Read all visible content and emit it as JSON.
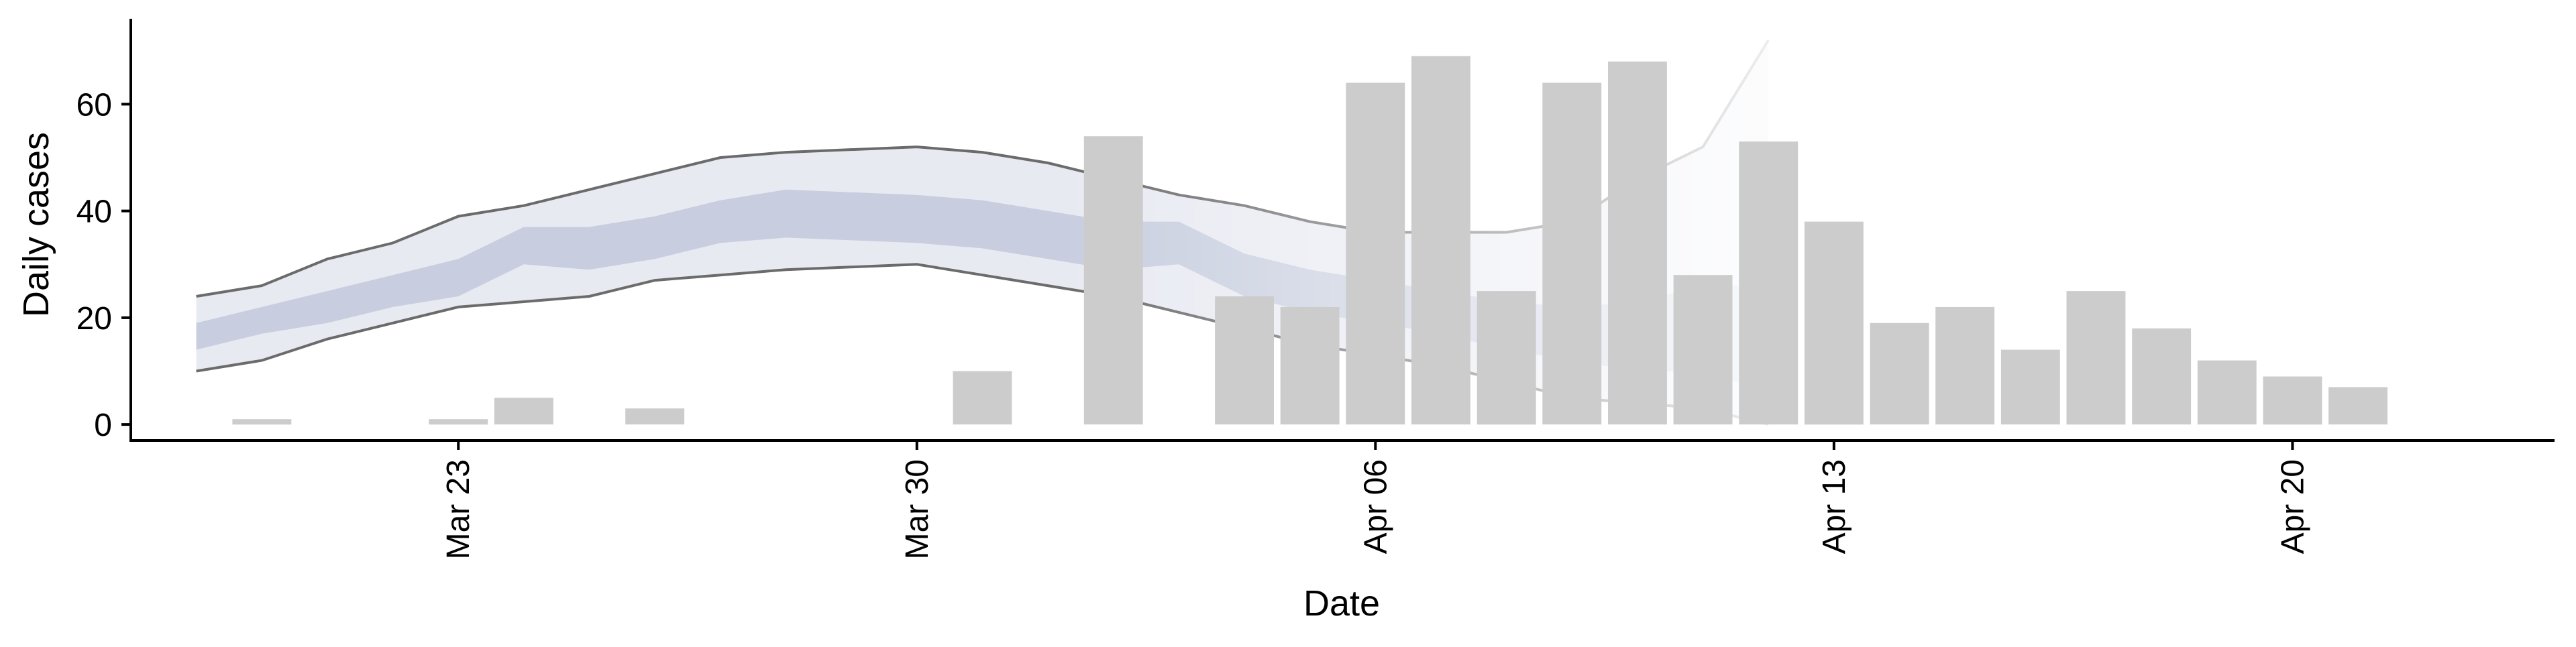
{
  "chart_data": {
    "type": "bar",
    "xlabel": "Date",
    "ylabel": "Daily cases",
    "ylim": [
      -3,
      76
    ],
    "yticks": [
      0,
      20,
      40,
      60
    ],
    "xlim": [
      "2020-03-18",
      "2020-04-24"
    ],
    "xticks": [
      {
        "date": "2020-03-23",
        "label": "Mar 23"
      },
      {
        "date": "2020-03-30",
        "label": "Mar 30"
      },
      {
        "date": "2020-04-06",
        "label": "Apr 06"
      },
      {
        "date": "2020-04-13",
        "label": "Apr 13"
      },
      {
        "date": "2020-04-20",
        "label": "Apr 20"
      }
    ],
    "grid": false,
    "legend": "none",
    "colors": {
      "bars": "#cccccc",
      "band_outer": "#e8eaf2",
      "band_inner": "#c8cedf",
      "bound_line": "#6b6b6b",
      "axis": "#000000"
    },
    "bars": [
      {
        "date": "2020-03-20",
        "value": 1
      },
      {
        "date": "2020-03-23",
        "value": 1
      },
      {
        "date": "2020-03-24",
        "value": 5
      },
      {
        "date": "2020-03-26",
        "value": 3
      },
      {
        "date": "2020-03-31",
        "value": 10
      },
      {
        "date": "2020-04-02",
        "value": 54
      },
      {
        "date": "2020-04-04",
        "value": 24
      },
      {
        "date": "2020-04-05",
        "value": 22
      },
      {
        "date": "2020-04-06",
        "value": 64
      },
      {
        "date": "2020-04-07",
        "value": 69
      },
      {
        "date": "2020-04-08",
        "value": 25
      },
      {
        "date": "2020-04-09",
        "value": 64
      },
      {
        "date": "2020-04-10",
        "value": 68
      },
      {
        "date": "2020-04-11",
        "value": 28
      },
      {
        "date": "2020-04-12",
        "value": 53
      },
      {
        "date": "2020-04-13",
        "value": 38
      },
      {
        "date": "2020-04-14",
        "value": 19
      },
      {
        "date": "2020-04-15",
        "value": 22
      },
      {
        "date": "2020-04-16",
        "value": 14
      },
      {
        "date": "2020-04-17",
        "value": 25
      },
      {
        "date": "2020-04-18",
        "value": 18
      },
      {
        "date": "2020-04-19",
        "value": 12
      },
      {
        "date": "2020-04-20",
        "value": 9
      },
      {
        "date": "2020-04-21",
        "value": 7
      }
    ],
    "band": [
      {
        "date": "2020-03-19",
        "lower": 10,
        "inner_lower": 14,
        "inner_upper": 19,
        "upper": 24
      },
      {
        "date": "2020-03-20",
        "lower": 12,
        "inner_lower": 17,
        "inner_upper": 22,
        "upper": 26
      },
      {
        "date": "2020-03-21",
        "lower": 16,
        "inner_lower": 19,
        "inner_upper": 25,
        "upper": 31
      },
      {
        "date": "2020-03-22",
        "lower": 19,
        "inner_lower": 22,
        "inner_upper": 28,
        "upper": 34
      },
      {
        "date": "2020-03-23",
        "lower": 22,
        "inner_lower": 24,
        "inner_upper": 31,
        "upper": 39
      },
      {
        "date": "2020-03-24",
        "lower": 23,
        "inner_lower": 30,
        "inner_upper": 37,
        "upper": 41
      },
      {
        "date": "2020-03-25",
        "lower": 24,
        "inner_lower": 29,
        "inner_upper": 37,
        "upper": 44
      },
      {
        "date": "2020-03-26",
        "lower": 27,
        "inner_lower": 31,
        "inner_upper": 39,
        "upper": 47
      },
      {
        "date": "2020-03-27",
        "lower": 28,
        "inner_lower": 34,
        "inner_upper": 42,
        "upper": 50
      },
      {
        "date": "2020-03-28",
        "lower": 29,
        "inner_lower": 35,
        "inner_upper": 44,
        "upper": 51
      },
      {
        "date": "2020-03-30",
        "lower": 30,
        "inner_lower": 34,
        "inner_upper": 43,
        "upper": 52
      },
      {
        "date": "2020-03-31",
        "lower": 28,
        "inner_lower": 33,
        "inner_upper": 42,
        "upper": 51
      },
      {
        "date": "2020-04-01",
        "lower": 26,
        "inner_lower": 31,
        "inner_upper": 40,
        "upper": 49
      },
      {
        "date": "2020-04-02",
        "lower": 24,
        "inner_lower": 29,
        "inner_upper": 38,
        "upper": 46
      },
      {
        "date": "2020-04-03",
        "lower": 21,
        "inner_lower": 30,
        "inner_upper": 38,
        "upper": 43
      },
      {
        "date": "2020-04-04",
        "lower": 18,
        "inner_lower": 24,
        "inner_upper": 32,
        "upper": 41
      },
      {
        "date": "2020-04-05",
        "lower": 15,
        "inner_lower": 21,
        "inner_upper": 29,
        "upper": 38
      },
      {
        "date": "2020-04-06",
        "lower": 13,
        "inner_lower": 19,
        "inner_upper": 27,
        "upper": 36
      },
      {
        "date": "2020-04-07",
        "lower": 11,
        "inner_lower": 17,
        "inner_upper": 25,
        "upper": 36
      },
      {
        "date": "2020-04-08",
        "lower": 8,
        "inner_lower": 14,
        "inner_upper": 23,
        "upper": 36
      },
      {
        "date": "2020-04-09",
        "lower": 5,
        "inner_lower": 12,
        "inner_upper": 22,
        "upper": 38
      },
      {
        "date": "2020-04-10",
        "lower": 4,
        "inner_lower": 10,
        "inner_upper": 23,
        "upper": 46
      },
      {
        "date": "2020-04-11",
        "lower": 3,
        "inner_lower": 10,
        "inner_upper": 26,
        "upper": 52
      },
      {
        "date": "2020-04-12",
        "lower": 0,
        "inner_lower": 6,
        "inner_upper": 26,
        "upper": 72
      }
    ]
  }
}
